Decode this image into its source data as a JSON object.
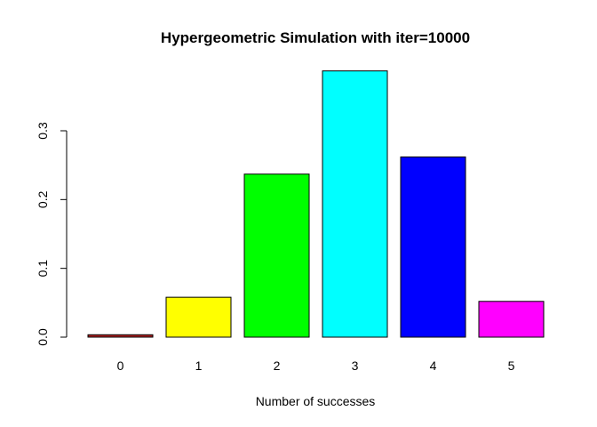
{
  "chart_data": {
    "type": "bar",
    "title": "Hypergeometric Simulation with iter=10000",
    "xlabel": "Number of successes",
    "ylabel": "",
    "categories": [
      "0",
      "1",
      "2",
      "3",
      "4",
      "5"
    ],
    "values": [
      0.0035,
      0.058,
      0.237,
      0.387,
      0.262,
      0.052
    ],
    "colors": [
      "#B22222",
      "#FFFF00",
      "#00FF00",
      "#00FFFF",
      "#0000FF",
      "#FF00FF"
    ],
    "ylim": [
      0,
      0.39
    ],
    "yticks": [
      0.0,
      0.1,
      0.2,
      0.3
    ],
    "ytick_labels": [
      "0.0",
      "0.1",
      "0.2",
      "0.3"
    ],
    "grid": false,
    "legend": "none"
  }
}
